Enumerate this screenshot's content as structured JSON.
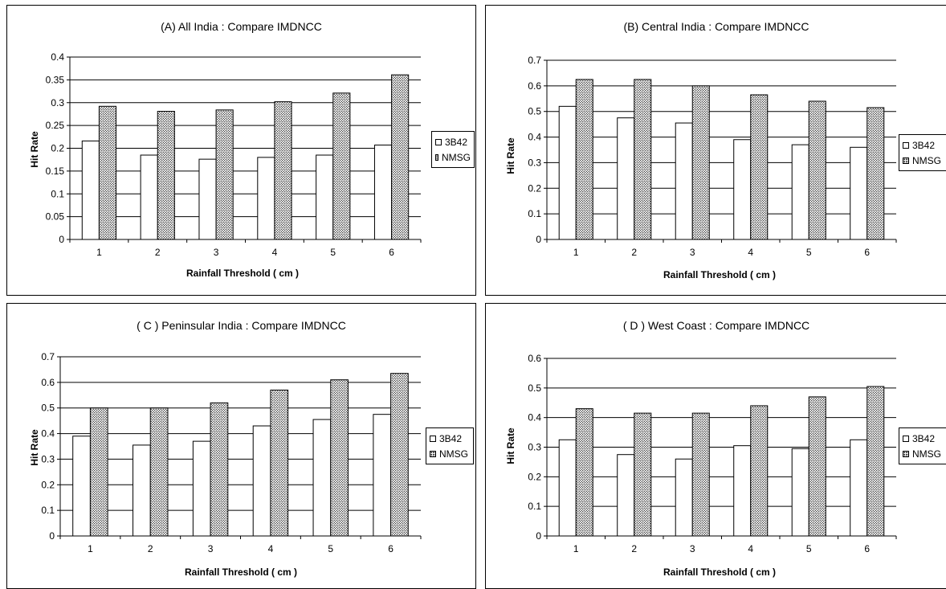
{
  "chart_data": [
    {
      "type": "bar",
      "title": "(A) All India : Compare IMDNCC",
      "xlabel": "Rainfall Threshold ( cm )",
      "ylabel": "Hit Rate",
      "categories": [
        "1",
        "2",
        "3",
        "4",
        "5",
        "6"
      ],
      "ylim": [
        0,
        0.4
      ],
      "ytick_step": 0.05,
      "yticks": [
        "0",
        "0.05",
        "0.1",
        "0.15",
        "0.2",
        "0.25",
        "0.3",
        "0.35",
        "0.4"
      ],
      "grid": true,
      "legend_position": "right",
      "series": [
        {
          "name": "3B42",
          "values": [
            0.216,
            0.185,
            0.176,
            0.18,
            0.185,
            0.207
          ]
        },
        {
          "name": "NMSG",
          "values": [
            0.292,
            0.281,
            0.284,
            0.302,
            0.321,
            0.361
          ]
        }
      ]
    },
    {
      "type": "bar",
      "title": "(B) Central India : Compare IMDNCC",
      "xlabel": "Rainfall Threshold ( cm )",
      "ylabel": "Hit Rate",
      "categories": [
        "1",
        "2",
        "3",
        "4",
        "5",
        "6"
      ],
      "ylim": [
        0,
        0.7
      ],
      "ytick_step": 0.1,
      "yticks": [
        "0",
        "0.1",
        "0.2",
        "0.3",
        "0.4",
        "0.5",
        "0.6",
        "0.7"
      ],
      "grid": true,
      "legend_position": "right",
      "series": [
        {
          "name": "3B42",
          "values": [
            0.52,
            0.475,
            0.455,
            0.39,
            0.37,
            0.36
          ]
        },
        {
          "name": "NMSG",
          "values": [
            0.625,
            0.625,
            0.6,
            0.565,
            0.54,
            0.515
          ]
        }
      ]
    },
    {
      "type": "bar",
      "title": "( C ) Peninsular India : Compare IMDNCC",
      "xlabel": "Rainfall Threshold ( cm )",
      "ylabel": "Hit Rate",
      "categories": [
        "1",
        "2",
        "3",
        "4",
        "5",
        "6"
      ],
      "ylim": [
        0,
        0.7
      ],
      "ytick_step": 0.1,
      "yticks": [
        "0",
        "0.1",
        "0.2",
        "0.3",
        "0.4",
        "0.5",
        "0.6",
        "0.7"
      ],
      "grid": true,
      "legend_position": "right",
      "series": [
        {
          "name": "3B42",
          "values": [
            0.39,
            0.355,
            0.37,
            0.43,
            0.455,
            0.475
          ]
        },
        {
          "name": "NMSG",
          "values": [
            0.5,
            0.5,
            0.52,
            0.57,
            0.61,
            0.635
          ]
        }
      ]
    },
    {
      "type": "bar",
      "title": "( D ) West Coast : Compare IMDNCC",
      "xlabel": "Rainfall Threshold ( cm )",
      "ylabel": "Hit Rate",
      "categories": [
        "1",
        "2",
        "3",
        "4",
        "5",
        "6"
      ],
      "ylim": [
        0,
        0.6
      ],
      "ytick_step": 0.1,
      "yticks": [
        "0",
        "0.1",
        "0.2",
        "0.3",
        "0.4",
        "0.5",
        "0.6"
      ],
      "grid": true,
      "legend_position": "right",
      "series": [
        {
          "name": "3B42",
          "values": [
            0.325,
            0.275,
            0.26,
            0.305,
            0.295,
            0.325
          ]
        },
        {
          "name": "NMSG",
          "values": [
            0.43,
            0.415,
            0.415,
            0.44,
            0.47,
            0.505
          ]
        }
      ]
    }
  ]
}
